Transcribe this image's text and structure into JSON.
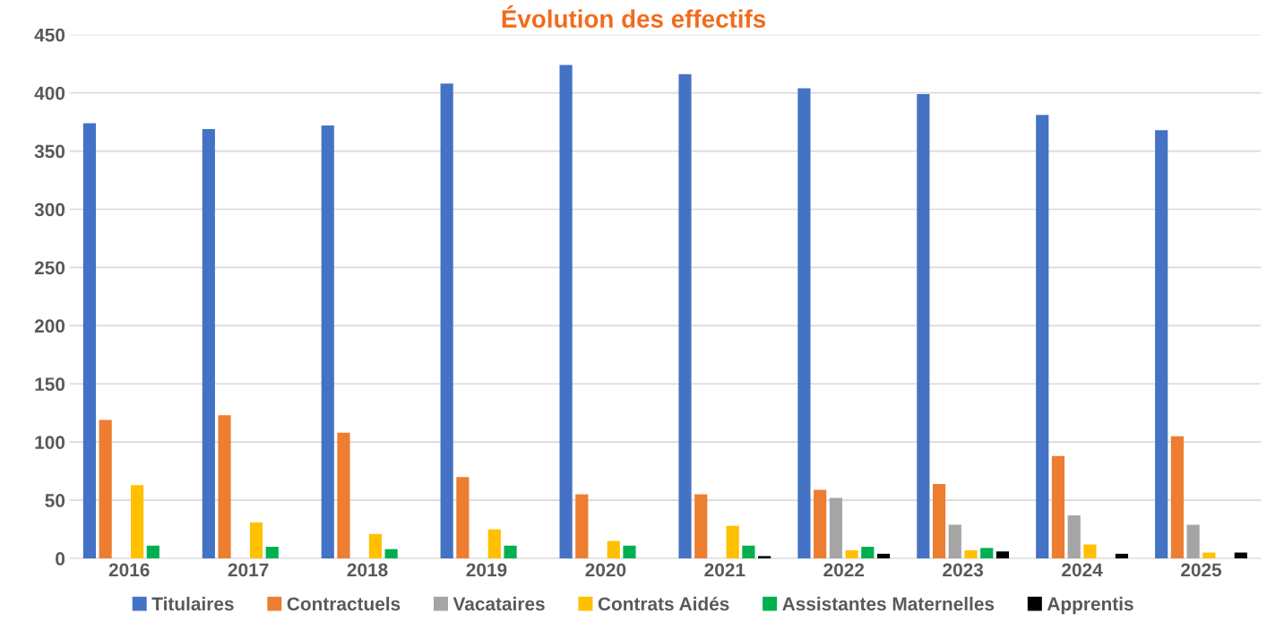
{
  "chart_data": {
    "type": "bar",
    "title": "Évolution des effectifs",
    "categories": [
      "2016",
      "2017",
      "2018",
      "2019",
      "2020",
      "2021",
      "2022",
      "2023",
      "2024",
      "2025"
    ],
    "series": [
      {
        "name": "Titulaires",
        "color": "#4472c4",
        "values": [
          374,
          369,
          372,
          408,
          424,
          416,
          404,
          399,
          381,
          368
        ]
      },
      {
        "name": "Contractuels",
        "color": "#ed7d31",
        "values": [
          119,
          123,
          108,
          70,
          55,
          55,
          59,
          64,
          88,
          105
        ]
      },
      {
        "name": "Vacataires",
        "color": "#a5a5a5",
        "values": [
          null,
          null,
          null,
          null,
          null,
          null,
          52,
          29,
          37,
          29
        ]
      },
      {
        "name": "Contrats Aidés",
        "color": "#ffc000",
        "values": [
          63,
          31,
          21,
          25,
          15,
          28,
          7,
          7,
          12,
          5
        ]
      },
      {
        "name": "Assistantes Maternelles",
        "color": "#00b050",
        "values": [
          11,
          10,
          8,
          11,
          11,
          11,
          10,
          9,
          null,
          null
        ]
      },
      {
        "name": "Apprentis",
        "color": "#000000",
        "values": [
          null,
          null,
          null,
          null,
          null,
          2,
          4,
          6,
          4,
          5
        ]
      }
    ],
    "ylim": [
      0,
      450
    ],
    "yticks": [
      0,
      50,
      100,
      150,
      200,
      250,
      300,
      350,
      400,
      450
    ],
    "grid": "y",
    "legend": "bottom"
  }
}
